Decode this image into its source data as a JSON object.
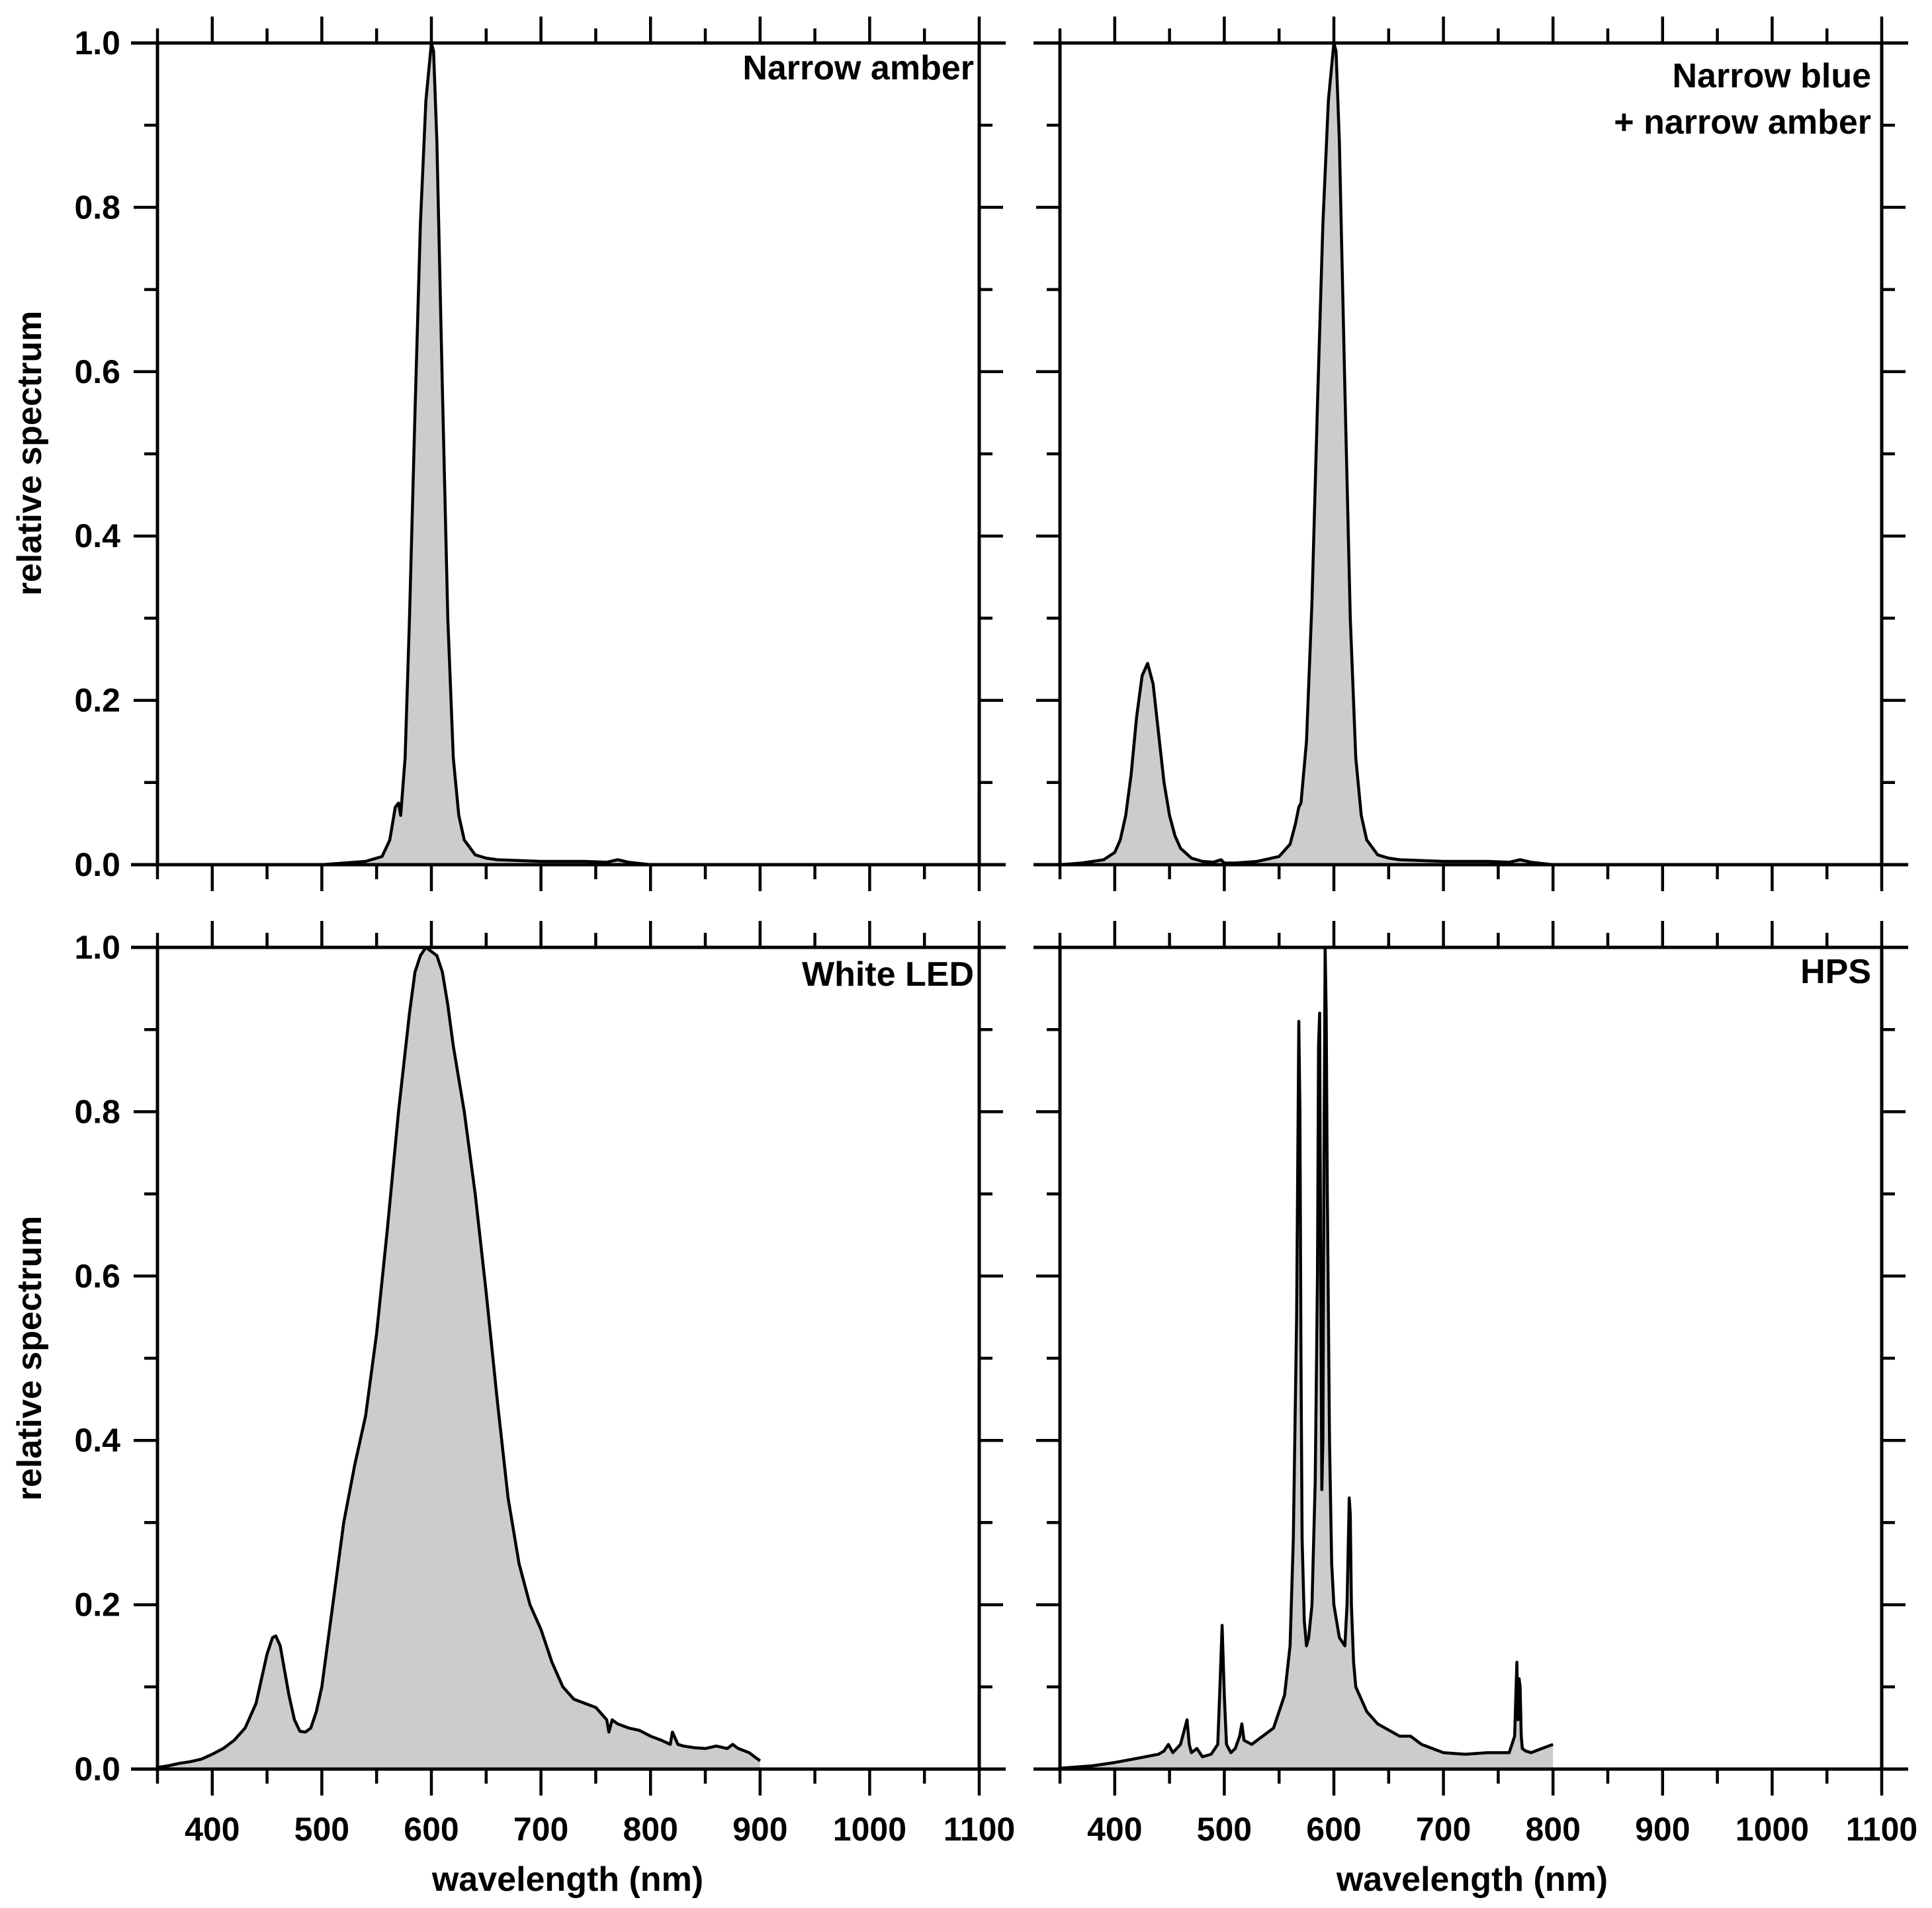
{
  "figure": {
    "ylabel": "relative spectrum",
    "xlabel": "wavelength (nm)"
  },
  "chart_data": [
    {
      "type": "area",
      "title": "Narrow amber",
      "xlabel": "",
      "ylabel": "relative spectrum",
      "xlim": [
        350,
        1100
      ],
      "ylim": [
        0,
        1.0
      ],
      "xticks": [
        400,
        500,
        600,
        700,
        800,
        900,
        1000,
        1100
      ],
      "yticks": [
        0.0,
        0.2,
        0.4,
        0.6,
        0.8,
        1.0
      ],
      "ytick_labels": [
        "0.0",
        "0.2",
        "0.4",
        "0.6",
        "0.8",
        "1.0"
      ],
      "series": [
        {
          "x": [
            500,
            520,
            540,
            555,
            562,
            567,
            570,
            572,
            576,
            580,
            585,
            590,
            595,
            600,
            602,
            605,
            610,
            615,
            620,
            625,
            630,
            640,
            650,
            660,
            680,
            700,
            720,
            740,
            760,
            770,
            780,
            800
          ],
          "y": [
            0.0,
            0.002,
            0.004,
            0.01,
            0.03,
            0.07,
            0.075,
            0.06,
            0.13,
            0.3,
            0.55,
            0.78,
            0.93,
            1.0,
            0.99,
            0.88,
            0.58,
            0.3,
            0.13,
            0.06,
            0.03,
            0.012,
            0.008,
            0.006,
            0.005,
            0.004,
            0.004,
            0.004,
            0.003,
            0.006,
            0.003,
            0.0
          ]
        }
      ]
    },
    {
      "type": "area",
      "title": "Narrow blue + narrow amber",
      "title_lines": [
        "Narrow blue",
        "+ narrow amber"
      ],
      "xlabel": "",
      "ylabel": "",
      "xlim": [
        350,
        1100
      ],
      "ylim": [
        0,
        1.0
      ],
      "xticks": [
        400,
        500,
        600,
        700,
        800,
        900,
        1000,
        1100
      ],
      "yticks": [
        0.0,
        0.2,
        0.4,
        0.6,
        0.8,
        1.0
      ],
      "series": [
        {
          "x": [
            350,
            370,
            390,
            400,
            405,
            410,
            415,
            420,
            425,
            430,
            435,
            440,
            445,
            450,
            455,
            460,
            470,
            480,
            490,
            497,
            500,
            510,
            530,
            550,
            560,
            565,
            568,
            570,
            575,
            580,
            585,
            590,
            595,
            600,
            602,
            605,
            610,
            615,
            620,
            625,
            630,
            640,
            650,
            660,
            680,
            700,
            720,
            740,
            760,
            770,
            780,
            800
          ],
          "y": [
            0.0,
            0.002,
            0.006,
            0.015,
            0.03,
            0.06,
            0.11,
            0.18,
            0.23,
            0.245,
            0.22,
            0.16,
            0.1,
            0.06,
            0.035,
            0.02,
            0.008,
            0.004,
            0.003,
            0.006,
            0.002,
            0.002,
            0.004,
            0.01,
            0.025,
            0.05,
            0.07,
            0.075,
            0.15,
            0.32,
            0.56,
            0.78,
            0.93,
            1.0,
            0.99,
            0.88,
            0.58,
            0.3,
            0.13,
            0.06,
            0.03,
            0.012,
            0.008,
            0.006,
            0.005,
            0.004,
            0.004,
            0.004,
            0.003,
            0.006,
            0.003,
            0.0
          ]
        }
      ]
    },
    {
      "type": "area",
      "title": "White LED",
      "xlabel": "wavelength (nm)",
      "ylabel": "relative spectrum",
      "xlim": [
        350,
        1100
      ],
      "ylim": [
        0,
        1.0
      ],
      "xticks": [
        400,
        500,
        600,
        700,
        800,
        900,
        1000,
        1100
      ],
      "xtick_labels": [
        "400",
        "500",
        "600",
        "700",
        "800",
        "900",
        "1000",
        "1100"
      ],
      "yticks": [
        0.0,
        0.2,
        0.4,
        0.6,
        0.8,
        1.0
      ],
      "ytick_labels": [
        "0.0",
        "0.2",
        "0.4",
        "0.6",
        "0.8",
        "1.0"
      ],
      "series": [
        {
          "x": [
            350,
            360,
            370,
            380,
            390,
            400,
            410,
            420,
            430,
            440,
            445,
            450,
            455,
            458,
            462,
            466,
            470,
            475,
            480,
            485,
            490,
            495,
            500,
            505,
            510,
            520,
            530,
            540,
            550,
            560,
            570,
            580,
            585,
            590,
            595,
            600,
            605,
            610,
            615,
            620,
            630,
            640,
            650,
            660,
            670,
            680,
            690,
            700,
            710,
            720,
            730,
            740,
            750,
            760,
            762,
            765,
            770,
            780,
            790,
            800,
            810,
            818,
            820,
            825,
            830,
            840,
            850,
            860,
            870,
            875,
            880,
            890,
            900
          ],
          "y": [
            0.002,
            0.004,
            0.007,
            0.009,
            0.012,
            0.018,
            0.025,
            0.035,
            0.05,
            0.08,
            0.11,
            0.14,
            0.16,
            0.162,
            0.15,
            0.12,
            0.09,
            0.06,
            0.046,
            0.045,
            0.05,
            0.07,
            0.1,
            0.15,
            0.2,
            0.3,
            0.37,
            0.43,
            0.53,
            0.66,
            0.8,
            0.92,
            0.97,
            0.99,
            1.0,
            0.995,
            0.99,
            0.97,
            0.93,
            0.88,
            0.8,
            0.7,
            0.58,
            0.45,
            0.33,
            0.25,
            0.2,
            0.17,
            0.13,
            0.1,
            0.085,
            0.08,
            0.075,
            0.06,
            0.045,
            0.06,
            0.055,
            0.05,
            0.047,
            0.04,
            0.035,
            0.03,
            0.045,
            0.03,
            0.028,
            0.026,
            0.025,
            0.028,
            0.025,
            0.03,
            0.025,
            0.02,
            0.01
          ]
        }
      ]
    },
    {
      "type": "area",
      "title": "HPS",
      "xlabel": "wavelength (nm)",
      "ylabel": "",
      "xlim": [
        350,
        1100
      ],
      "ylim": [
        0,
        1.0
      ],
      "xticks": [
        400,
        500,
        600,
        700,
        800,
        900,
        1000,
        1100
      ],
      "xtick_labels": [
        "400",
        "500",
        "600",
        "700",
        "800",
        "900",
        "1000",
        "1100"
      ],
      "yticks": [
        0.0,
        0.2,
        0.4,
        0.6,
        0.8,
        1.0
      ],
      "series": [
        {
          "x": [
            350,
            380,
            400,
            420,
            440,
            445,
            449,
            453,
            460,
            466,
            468,
            470,
            475,
            480,
            488,
            494,
            496,
            498,
            500,
            502,
            506,
            510,
            514,
            516,
            518,
            525,
            535,
            545,
            555,
            560,
            563,
            566,
            568,
            569,
            570,
            571,
            573,
            575,
            577,
            580,
            583,
            585,
            586,
            587,
            588,
            589,
            590,
            591,
            592,
            593,
            594,
            596,
            598,
            600,
            605,
            610,
            612,
            614,
            615,
            616,
            618,
            620,
            630,
            640,
            660,
            670,
            680,
            700,
            720,
            740,
            760,
            765,
            767,
            768,
            769,
            770,
            771,
            772,
            775,
            780,
            790,
            800
          ],
          "y": [
            0.001,
            0.004,
            0.008,
            0.013,
            0.018,
            0.022,
            0.03,
            0.02,
            0.03,
            0.06,
            0.03,
            0.02,
            0.025,
            0.015,
            0.018,
            0.03,
            0.1,
            0.175,
            0.09,
            0.03,
            0.02,
            0.025,
            0.04,
            0.055,
            0.035,
            0.03,
            0.04,
            0.05,
            0.09,
            0.15,
            0.28,
            0.55,
            0.91,
            0.8,
            0.5,
            0.28,
            0.18,
            0.15,
            0.16,
            0.2,
            0.35,
            0.6,
            0.88,
            0.92,
            0.6,
            0.34,
            0.4,
            0.75,
            1.0,
            0.92,
            0.7,
            0.4,
            0.25,
            0.2,
            0.16,
            0.15,
            0.2,
            0.33,
            0.31,
            0.2,
            0.13,
            0.1,
            0.07,
            0.055,
            0.04,
            0.04,
            0.03,
            0.02,
            0.018,
            0.02,
            0.02,
            0.04,
            0.13,
            0.06,
            0.11,
            0.1,
            0.04,
            0.025,
            0.022,
            0.02,
            0.025,
            0.03
          ]
        }
      ]
    }
  ]
}
